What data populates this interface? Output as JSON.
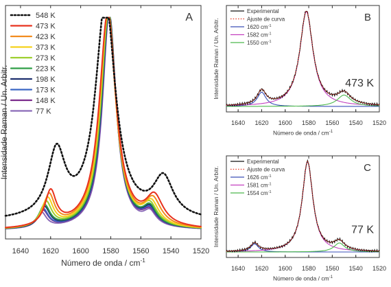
{
  "chart_data": [
    {
      "id": "A",
      "type": "line",
      "panel_label": "A",
      "xlabel": "Número de onda / cm",
      "xlabel_sup": "-1",
      "ylabel": "Intensidade Raman / Un. Arbitr.",
      "xlim": [
        1650,
        1520
      ],
      "x_reversed": true,
      "ylim": [
        0,
        1.0
      ],
      "xticks": [
        1640,
        1620,
        1600,
        1580,
        1560,
        1540,
        1520
      ],
      "legend_position": "top-left",
      "series": [
        {
          "name": "548 K",
          "color": "#111111",
          "dash": "dotted",
          "x0": 1583.5,
          "w0": 16.0,
          "a0": 1.0,
          "a1": 0.3,
          "x1": 1616,
          "w1": 14,
          "a2": 0.18,
          "x2": 1545,
          "w2": 16,
          "base": 0.06
        },
        {
          "name": "473 K",
          "color": "#e8321e",
          "dash": "solid",
          "x0": 1582.0,
          "w0": 13.5,
          "a0": 1.0,
          "a1": 0.16,
          "x1": 1620,
          "w1": 9,
          "a2": 0.13,
          "x2": 1551,
          "w2": 14,
          "base": 0.02
        },
        {
          "name": "423 K",
          "color": "#f28c1e",
          "dash": "solid",
          "x0": 1582.0,
          "w0": 13.0,
          "a0": 1.0,
          "a1": 0.145,
          "x1": 1621,
          "w1": 9,
          "a2": 0.115,
          "x2": 1552,
          "w2": 13,
          "base": 0.02
        },
        {
          "name": "373 K",
          "color": "#f5d21c",
          "dash": "solid",
          "x0": 1581.8,
          "w0": 12.6,
          "a0": 1.0,
          "a1": 0.13,
          "x1": 1622,
          "w1": 9,
          "a2": 0.1,
          "x2": 1553,
          "w2": 12,
          "base": 0.02
        },
        {
          "name": "273 K",
          "color": "#9dcf2e",
          "dash": "solid",
          "x0": 1581.6,
          "w0": 12.2,
          "a0": 1.0,
          "a1": 0.115,
          "x1": 1623,
          "w1": 9,
          "a2": 0.09,
          "x2": 1554,
          "w2": 12,
          "base": 0.02
        },
        {
          "name": "223 K",
          "color": "#2e9e46",
          "dash": "solid",
          "x0": 1581.4,
          "w0": 11.9,
          "a0": 1.0,
          "a1": 0.1,
          "x1": 1624,
          "w1": 9,
          "a2": 0.08,
          "x2": 1554,
          "w2": 11,
          "base": 0.02
        },
        {
          "name": "198 K",
          "color": "#1d2f6e",
          "dash": "solid",
          "x0": 1581.3,
          "w0": 11.7,
          "a0": 1.0,
          "a1": 0.092,
          "x1": 1624,
          "w1": 8.5,
          "a2": 0.075,
          "x2": 1554,
          "w2": 11,
          "base": 0.02
        },
        {
          "name": "173 K",
          "color": "#3a66c4",
          "dash": "solid",
          "x0": 1581.2,
          "w0": 11.5,
          "a0": 1.0,
          "a1": 0.085,
          "x1": 1625,
          "w1": 8.5,
          "a2": 0.07,
          "x2": 1554,
          "w2": 11,
          "base": 0.02
        },
        {
          "name": "148 K",
          "color": "#7a2a8c",
          "dash": "solid",
          "x0": 1581.1,
          "w0": 11.3,
          "a0": 1.0,
          "a1": 0.078,
          "x1": 1625,
          "w1": 8.5,
          "a2": 0.065,
          "x2": 1554,
          "w2": 11,
          "base": 0.02
        },
        {
          "name": "77 K",
          "color": "#8a6ab8",
          "dash": "solid",
          "x0": 1581.0,
          "w0": 11.0,
          "a0": 1.0,
          "a1": 0.07,
          "x1": 1626,
          "w1": 8,
          "a2": 0.06,
          "x2": 1554,
          "w2": 10,
          "base": 0.02
        }
      ]
    },
    {
      "id": "B",
      "type": "line",
      "panel_label": "B",
      "annotation": "473 K",
      "xlabel": "Número de onda / cm",
      "xlabel_sup": "-1",
      "ylabel": "Intensidade Raman / Un. Arbitr.",
      "xlim": [
        1650,
        1520
      ],
      "x_reversed": true,
      "ylim": [
        0,
        1.05
      ],
      "xticks": [
        1640,
        1620,
        1600,
        1580,
        1560,
        1540,
        1520
      ],
      "legend_position": "top-left",
      "legend": [
        {
          "label": "Experimental",
          "color": "#111111",
          "dash": "solid"
        },
        {
          "label": "Ajuste de curva",
          "color": "#e8321e",
          "dash": "dotted"
        },
        {
          "label": "1620 cm",
          "sup": "-1",
          "color": "#3a4fb8",
          "dash": "solid"
        },
        {
          "label": "1582 cm",
          "sup": "-1",
          "color": "#c23fbf",
          "dash": "solid"
        },
        {
          "label": "1550 cm",
          "sup": "-1",
          "color": "#4cb84c",
          "dash": "solid"
        }
      ],
      "components": [
        {
          "center": 1620,
          "width": 9,
          "amp": 0.15
        },
        {
          "center": 1582,
          "width": 13.5,
          "amp": 1.0
        },
        {
          "center": 1550,
          "width": 14,
          "amp": 0.12
        }
      ]
    },
    {
      "id": "C",
      "type": "line",
      "panel_label": "C",
      "annotation": "77 K",
      "xlabel": "Número de onda / cm",
      "xlabel_sup": "-1",
      "ylabel": "Intensidade Raman / Un. Arbitr.",
      "xlim": [
        1650,
        1520
      ],
      "x_reversed": true,
      "ylim": [
        0,
        1.05
      ],
      "xticks": [
        1640,
        1620,
        1600,
        1580,
        1560,
        1540,
        1520
      ],
      "legend_position": "top-left",
      "legend": [
        {
          "label": "Experimental",
          "color": "#111111",
          "dash": "solid"
        },
        {
          "label": "Ajuste de curva",
          "color": "#e8321e",
          "dash": "dotted"
        },
        {
          "label": "1626 cm",
          "sup": "-1",
          "color": "#3a4fb8",
          "dash": "solid"
        },
        {
          "label": "1581 cm",
          "sup": "-1",
          "color": "#c23fbf",
          "dash": "solid"
        },
        {
          "label": "1554 cm",
          "sup": "-1",
          "color": "#4cb84c",
          "dash": "solid"
        }
      ],
      "components": [
        {
          "center": 1626,
          "width": 8,
          "amp": 0.09
        },
        {
          "center": 1581,
          "width": 11,
          "amp": 1.0
        },
        {
          "center": 1554,
          "width": 11,
          "amp": 0.1
        }
      ]
    }
  ]
}
